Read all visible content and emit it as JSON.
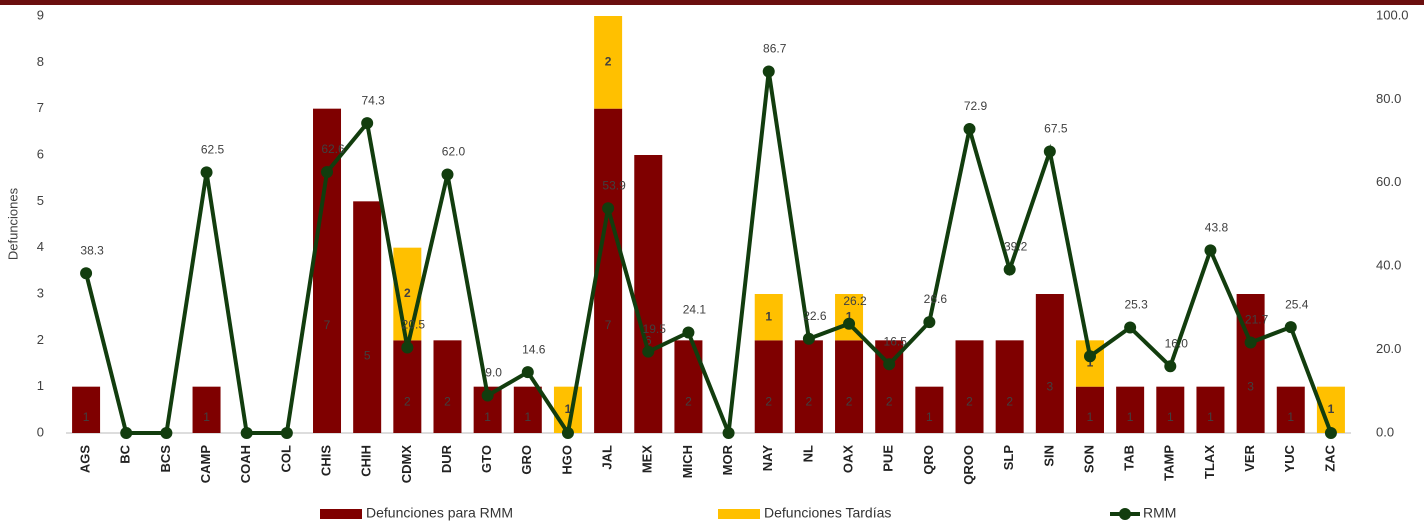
{
  "chart_data": {
    "type": "bar",
    "stacked": true,
    "y_label": "Defunciones",
    "categories": [
      "AGS",
      "BC",
      "BCS",
      "CAMP",
      "COAH",
      "COL",
      "CHIS",
      "CHIH",
      "CDMX",
      "DUR",
      "GTO",
      "GRO",
      "HGO",
      "JAL",
      "MEX",
      "MICH",
      "MOR",
      "NAY",
      "NL",
      "OAX",
      "PUE",
      "QRO",
      "QROO",
      "SLP",
      "SIN",
      "SON",
      "TAB",
      "TAMP",
      "TLAX",
      "VER",
      "YUC",
      "ZAC"
    ],
    "series": [
      {
        "name": "Defunciones para RMM",
        "color": "#7f0000",
        "values": [
          1,
          null,
          null,
          1,
          null,
          null,
          7,
          5,
          2,
          2,
          1,
          1,
          null,
          7,
          6,
          2,
          null,
          2,
          2,
          2,
          2,
          1,
          2,
          2,
          3,
          1,
          1,
          1,
          1,
          3,
          1,
          null
        ]
      },
      {
        "name": "Defunciones Tardías",
        "color": "#ffc000",
        "values": [
          null,
          null,
          null,
          null,
          null,
          null,
          null,
          null,
          2,
          null,
          null,
          null,
          1,
          2,
          null,
          null,
          null,
          1,
          null,
          1,
          null,
          null,
          null,
          null,
          null,
          1,
          null,
          null,
          null,
          null,
          null,
          1
        ]
      },
      {
        "name": "RMM",
        "type": "line",
        "axis": "y2",
        "color": "#123d0e",
        "values": [
          38.3,
          0,
          0,
          62.5,
          0,
          0,
          62.6,
          74.3,
          20.5,
          62.0,
          9.0,
          14.6,
          0,
          53.9,
          19.5,
          24.1,
          0,
          86.7,
          22.6,
          26.2,
          16.5,
          26.6,
          72.9,
          39.2,
          67.5,
          18.4,
          25.3,
          16.0,
          43.8,
          21.7,
          25.4,
          0
        ],
        "value_labels": [
          "38.3",
          null,
          null,
          "62.5",
          null,
          null,
          "62.6",
          "74.3",
          "20.5",
          "62.0",
          "9.0",
          "14.6",
          null,
          "53.9",
          "19.5",
          "24.1",
          null,
          "86.7",
          "22.6",
          "26.2",
          "16.5",
          "26.6",
          "72.9",
          "39.2",
          "67.5",
          null,
          "25.3",
          "16.0",
          "43.8",
          "21.7",
          "25.4",
          null
        ]
      }
    ],
    "ylim": [
      0,
      9
    ],
    "yticks": [
      0,
      1,
      2,
      3,
      4,
      5,
      6,
      7,
      8,
      9
    ],
    "y2lim": [
      0,
      100
    ],
    "y2ticks": [
      {
        "value": 0,
        "label": "0.0"
      },
      {
        "value": 20,
        "label": "20.0"
      },
      {
        "value": 40,
        "label": "40.0"
      },
      {
        "value": 60,
        "label": "60.0"
      },
      {
        "value": 80,
        "label": "80.0"
      },
      {
        "value": 100,
        "label": "100.0"
      }
    ],
    "legend": "bottom",
    "grid": false
  }
}
